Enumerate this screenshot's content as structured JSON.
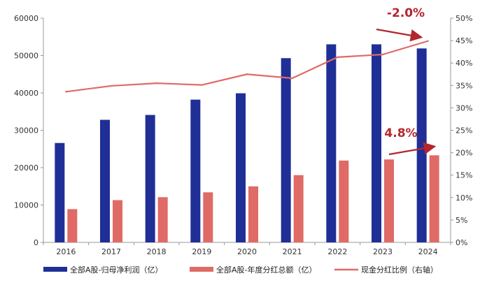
{
  "colors": {
    "profit_bar": "#1f2f96",
    "dividend_bar": "#e06a66",
    "ratio_line": "#e06a66",
    "annotation": "#b3262e",
    "axis": "#999999"
  },
  "chart_data": {
    "type": "bar",
    "categories": [
      "2016",
      "2017",
      "2018",
      "2019",
      "2020",
      "2021",
      "2022",
      "2023",
      "2024"
    ],
    "series": [
      {
        "name": "全部A股-归母净利润（亿）",
        "type": "bar",
        "axis": "left",
        "values": [
          26600,
          32800,
          34100,
          38200,
          39900,
          49300,
          53000,
          53000,
          51900
        ]
      },
      {
        "name": "全部A股-年度分红总额（亿）",
        "type": "bar",
        "axis": "left",
        "values": [
          8900,
          11300,
          12100,
          13400,
          15000,
          18000,
          21900,
          22200,
          23300
        ]
      },
      {
        "name": "现金分红比例（右轴）",
        "type": "line",
        "axis": "right",
        "values": [
          33.6,
          34.9,
          35.5,
          35.1,
          37.5,
          36.6,
          41.3,
          41.9,
          44.9
        ]
      }
    ],
    "y_left": {
      "min": 0,
      "max": 60000,
      "ticks": [
        "0",
        "10000",
        "20000",
        "30000",
        "40000",
        "50000",
        "60000"
      ]
    },
    "y_right": {
      "min": 0,
      "max": 50,
      "ticks": [
        "0%",
        "5%",
        "10%",
        "15%",
        "20%",
        "25%",
        "30%",
        "35%",
        "40%",
        "45%",
        "50%"
      ]
    },
    "annotations": [
      {
        "text": "-2.0%",
        "refers_to": "全部A股-归母净利润（亿）",
        "period": "2023-2024"
      },
      {
        "text": "4.8%",
        "refers_to": "全部A股-年度分红总额（亿）",
        "period": "2023-2024"
      }
    ],
    "legend_position": "bottom",
    "grid": false
  }
}
